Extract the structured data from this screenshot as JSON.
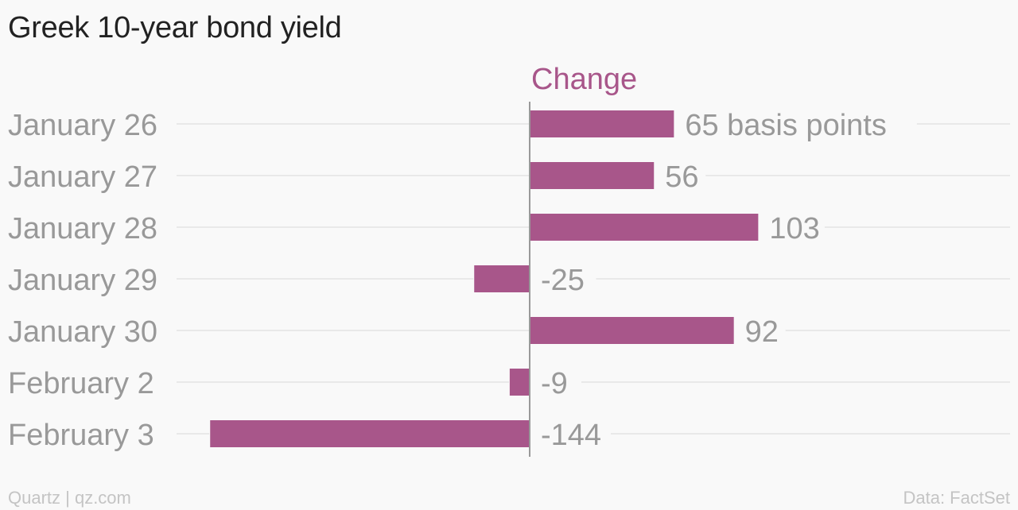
{
  "chart_data": {
    "type": "bar",
    "orientation": "horizontal",
    "title": "Greek 10-year bond yield",
    "series": [
      {
        "name": "Change",
        "color": "#a8568a",
        "values": [
          65,
          56,
          103,
          -25,
          92,
          -9,
          -144
        ]
      }
    ],
    "categories": [
      "January 26",
      "January 27",
      "January 28",
      "January 29",
      "January 30",
      "February 2",
      "February 3"
    ],
    "data_labels": [
      "65 basis points",
      "56",
      "103",
      "-25",
      "92",
      "-9",
      "-144"
    ],
    "xlim": [
      -160,
      180
    ],
    "grid": true,
    "legend": "top"
  },
  "footer": {
    "source_left": "Quartz | qz.com",
    "source_right": "Data: FactSet"
  },
  "colors": {
    "bar": "#a8568a",
    "text": "#999999",
    "title": "#222222",
    "grid": "#e4e4e4",
    "axis": "#999999"
  }
}
